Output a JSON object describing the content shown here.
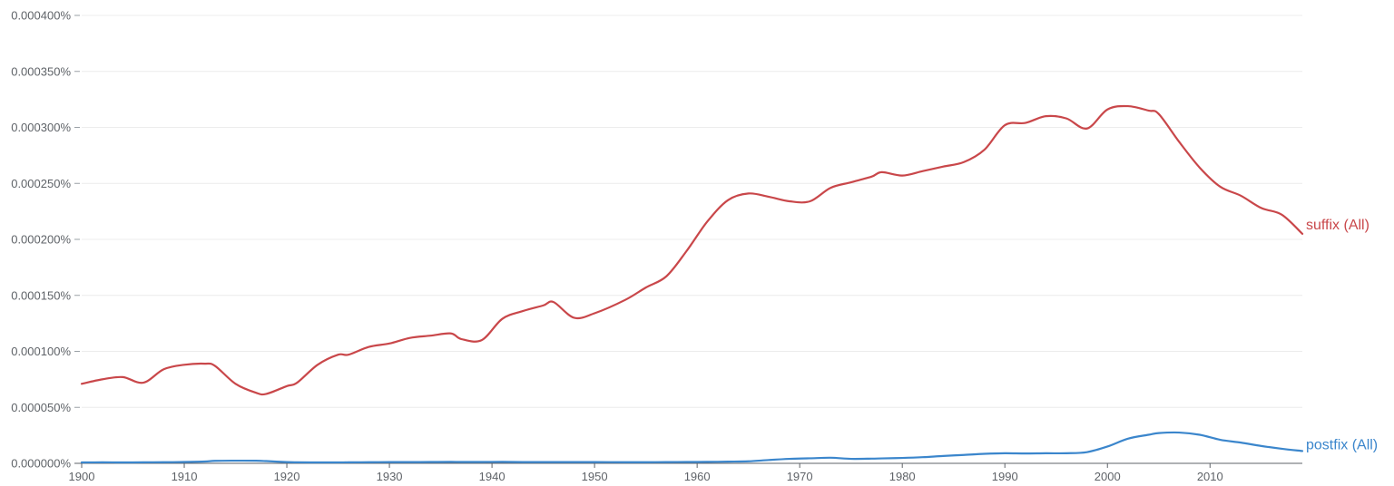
{
  "chart_data": {
    "type": "line",
    "xlim": [
      1900,
      2019
    ],
    "ylim": [
      0,
      0.0004
    ],
    "y_unit": "%",
    "y_ticks": [
      0,
      5e-05,
      0.0001,
      0.00015,
      0.0002,
      0.00025,
      0.0003,
      0.00035,
      0.0004
    ],
    "y_tick_labels": [
      "0.000000%",
      "0.000050%",
      "0.000100%",
      "0.000150%",
      "0.000200%",
      "0.000250%",
      "0.000300%",
      "0.000350%",
      "0.000400%"
    ],
    "x_ticks": [
      1900,
      1910,
      1920,
      1930,
      1940,
      1950,
      1960,
      1970,
      1980,
      1990,
      2000,
      2010
    ],
    "x_tick_labels": [
      "1900",
      "1910",
      "1920",
      "1930",
      "1940",
      "1950",
      "1960",
      "1970",
      "1980",
      "1990",
      "2000",
      "2010"
    ],
    "grid": true,
    "legend": "end-of-line labels",
    "x": [
      1900,
      1902,
      1904,
      1906,
      1908,
      1910,
      1912,
      1913,
      1915,
      1917,
      1918,
      1920,
      1921,
      1923,
      1925,
      1926,
      1928,
      1930,
      1932,
      1934,
      1936,
      1937,
      1939,
      1941,
      1943,
      1945,
      1946,
      1948,
      1950,
      1953,
      1955,
      1957,
      1959,
      1961,
      1963,
      1965,
      1967,
      1969,
      1971,
      1973,
      1975,
      1977,
      1978,
      1980,
      1982,
      1984,
      1986,
      1988,
      1990,
      1992,
      1994,
      1996,
      1998,
      2000,
      2002,
      2004,
      2005,
      2007,
      2009,
      2011,
      2013,
      2015,
      2017,
      2019
    ],
    "series": [
      {
        "name": "suffix (All)",
        "color": "#c9474a",
        "values": [
          7.1e-05,
          7.5e-05,
          7.7e-05,
          7.2e-05,
          8.4e-05,
          8.8e-05,
          8.9e-05,
          8.7e-05,
          7.1e-05,
          6.3e-05,
          6.2e-05,
          6.9e-05,
          7.2e-05,
          8.8e-05,
          9.7e-05,
          9.7e-05,
          0.000104,
          0.000107,
          0.000112,
          0.000114,
          0.000116,
          0.000111,
          0.00011,
          0.000129,
          0.000136,
          0.000141,
          0.000144,
          0.00013,
          0.000134,
          0.000146,
          0.000157,
          0.000167,
          0.00019,
          0.000216,
          0.000235,
          0.000241,
          0.000238,
          0.000234,
          0.000234,
          0.000246,
          0.000251,
          0.000256,
          0.00026,
          0.000257,
          0.000261,
          0.000265,
          0.000269,
          0.00028,
          0.000302,
          0.000304,
          0.00031,
          0.000308,
          0.000299,
          0.000316,
          0.000319,
          0.000315,
          0.000312,
          0.000287,
          0.000264,
          0.000247,
          0.000239,
          0.000228,
          0.000222,
          0.000205
        ]
      },
      {
        "name": "postfix (All)",
        "color": "#3b86cc",
        "values": [
          8e-07,
          9e-07,
          8e-07,
          9e-07,
          1e-06,
          1.2e-06,
          1.6e-06,
          2.2e-06,
          2.4e-06,
          2.3e-06,
          2e-06,
          1.1e-06,
          9e-07,
          8e-07,
          8e-07,
          9e-07,
          1e-06,
          1.1e-06,
          1.1e-06,
          1.2e-06,
          1.3e-06,
          1.2e-06,
          1.2e-06,
          1.3e-06,
          1.1e-06,
          1.1e-06,
          1.1e-06,
          1.1e-06,
          1.1e-06,
          1e-06,
          1e-06,
          1.1e-06,
          1.2e-06,
          1.3e-06,
          1.5e-06,
          1.8e-06,
          3e-06,
          4e-06,
          4.5e-06,
          5e-06,
          4e-06,
          4.2e-06,
          4.4e-06,
          4.8e-06,
          5.5e-06,
          6.6e-06,
          7.5e-06,
          8.5e-06,
          9e-06,
          8.8e-06,
          9e-06,
          9e-06,
          1e-05,
          1.5e-05,
          2.2e-05,
          2.55e-05,
          2.7e-05,
          2.75e-05,
          2.55e-05,
          2.1e-05,
          1.85e-05,
          1.55e-05,
          1.3e-05,
          1.1e-05
        ]
      }
    ]
  }
}
